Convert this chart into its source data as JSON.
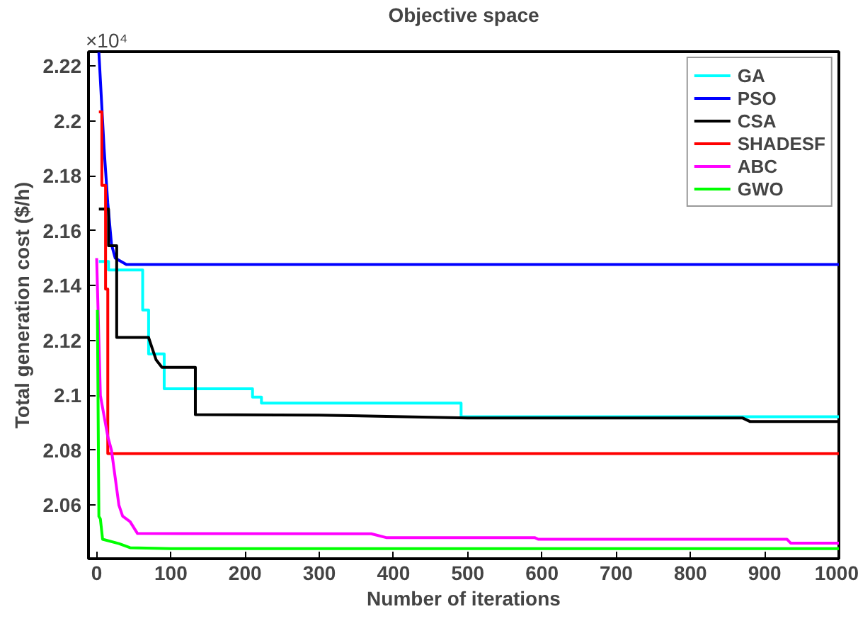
{
  "chart_data": {
    "type": "line",
    "title": "Objective space",
    "xlabel": "Number of iterations",
    "ylabel": "Total generation cost ($/h)",
    "annotations": [
      "×10⁴"
    ],
    "xlim": [
      -11,
      1000
    ],
    "ylim": [
      2.0405,
      2.2252
    ],
    "xticks": [
      0,
      100,
      200,
      300,
      400,
      500,
      600,
      700,
      800,
      900,
      1000
    ],
    "yticks": [
      2.06,
      2.08,
      2.1,
      2.12,
      2.14,
      2.16,
      2.18,
      2.2,
      2.22
    ],
    "grid": false,
    "legend": "top right",
    "line_style": "solid",
    "series": [
      {
        "name": "GA",
        "color": "#00ffff",
        "x": [
          3,
          16,
          16,
          62,
          62,
          70,
          70,
          91,
          91,
          210,
          210,
          222,
          222,
          491,
          491,
          1000
        ],
        "values": [
          2.1488,
          2.1488,
          2.1457,
          2.1457,
          2.1311,
          2.1311,
          2.1151,
          2.1151,
          2.1024,
          2.1024,
          2.0994,
          2.0994,
          2.0972,
          2.0972,
          2.0922,
          2.0922
        ]
      },
      {
        "name": "PSO",
        "color": "#0000ff",
        "x": [
          3,
          10,
          15,
          20,
          25,
          40,
          1000
        ],
        "values": [
          2.225,
          2.19,
          2.17,
          2.155,
          2.15,
          2.1477,
          2.1477
        ]
      },
      {
        "name": "CSA",
        "color": "#000000",
        "x": [
          3,
          16,
          16,
          27,
          27,
          70,
          75,
          80,
          88,
          133,
          133,
          300,
          500,
          870,
          880,
          1000
        ],
        "values": [
          2.1679,
          2.1679,
          2.1545,
          2.1545,
          2.1211,
          2.1211,
          2.117,
          2.113,
          2.1102,
          2.1102,
          2.093,
          2.0928,
          2.0918,
          2.0918,
          2.0905,
          2.0905
        ]
      },
      {
        "name": "SHADESF",
        "color": "#ff0000",
        "x": [
          3,
          7,
          7,
          12,
          12,
          15,
          15,
          1000
        ],
        "values": [
          2.2033,
          2.2033,
          2.1765,
          2.1765,
          2.1387,
          2.1387,
          2.0788,
          2.0788
        ]
      },
      {
        "name": "ABC",
        "color": "#ff00ff",
        "x": [
          0,
          5,
          15,
          20,
          25,
          30,
          35,
          45,
          55,
          370,
          390,
          590,
          595,
          930,
          935,
          1000
        ],
        "values": [
          2.15,
          2.1,
          2.085,
          2.08,
          2.07,
          2.06,
          2.056,
          2.054,
          2.0497,
          2.0496,
          2.0482,
          2.0482,
          2.0476,
          2.0476,
          2.0462,
          2.0462
        ]
      },
      {
        "name": "GWO",
        "color": "#00ff00",
        "x": [
          1,
          3,
          5,
          8,
          30,
          45,
          100,
          1000
        ],
        "values": [
          2.1311,
          2.0559,
          2.055,
          2.0476,
          2.046,
          2.0445,
          2.0442,
          2.0442
        ]
      }
    ]
  }
}
